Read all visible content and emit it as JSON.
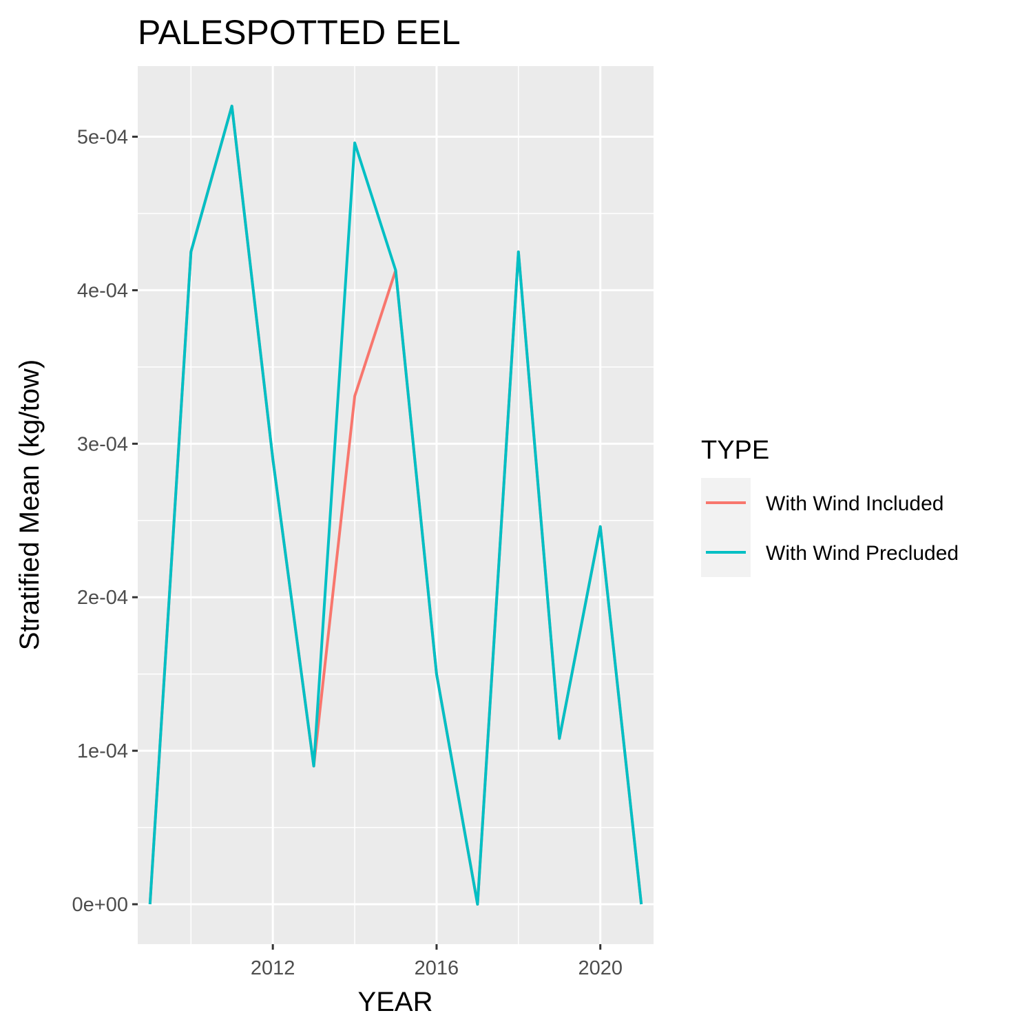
{
  "chart_data": {
    "type": "line",
    "title": "PALESPOTTED EEL",
    "xlabel": "YEAR",
    "ylabel": "Stratified Mean (kg/tow)",
    "xlim": [
      2008.7,
      2021.3
    ],
    "ylim": [
      -2.6e-05,
      0.000546
    ],
    "x_ticks": [
      2012,
      2016,
      2020
    ],
    "x_tick_labels": [
      "2012",
      "2016",
      "2020"
    ],
    "y_ticks": [
      0,
      0.0001,
      0.0002,
      0.0003,
      0.0004,
      0.0005
    ],
    "y_tick_labels": [
      "0e+00",
      "1e-04",
      "2e-04",
      "3e-04",
      "4e-04",
      "5e-04"
    ],
    "grid": true,
    "legend": {
      "title": "TYPE",
      "position": "right"
    },
    "x": [
      2009,
      2010,
      2011,
      2012,
      2013,
      2014,
      2015,
      2016,
      2017,
      2018,
      2019,
      2020,
      2021
    ],
    "series": [
      {
        "name": "With Wind Included",
        "color": "#F8766D",
        "values": [
          0,
          0.000425,
          0.00052,
          0.00029,
          9e-05,
          0.000331,
          0.000413,
          0.00015,
          0,
          0.000425,
          0.000108,
          0.000246,
          0
        ]
      },
      {
        "name": "With Wind Precluded",
        "color": "#00BFC4",
        "values": [
          0,
          0.000425,
          0.00052,
          0.00029,
          9e-05,
          0.000496,
          0.000413,
          0.00015,
          0,
          0.000425,
          0.000108,
          0.000246,
          0
        ]
      }
    ]
  }
}
